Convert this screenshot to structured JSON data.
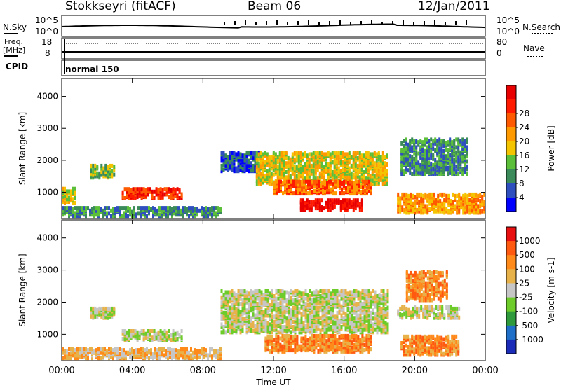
{
  "header": {
    "station": "Stokkseyri (fitACF)",
    "beam": "Beam 06",
    "date": "12/Jan/2011"
  },
  "strips": {
    "nsky_label": "N.Sky",
    "nsearch_label": "N.Search",
    "scale_top": "10^5",
    "scale_bottom": "10^0",
    "freq_label_1": "Freq.",
    "freq_label_2": "[MHz]",
    "freq_top": "18",
    "freq_bottom": "8",
    "nave_label": "Nave",
    "nave_top": "80",
    "nave_bottom": "0",
    "cpid_label": "CPID",
    "cpid_value": "normal 150"
  },
  "colors": {
    "power": [
      "#0000ff",
      "#2f4fbf",
      "#3a8a5a",
      "#5cbf3a",
      "#f5c400",
      "#ff9a00",
      "#ff5a00",
      "#ff1a00",
      "#e80000"
    ],
    "velocity": [
      "#1b2db8",
      "#1f6ec8",
      "#2e9a3c",
      "#6dcc2a",
      "#c6c6c6",
      "#e8b24a",
      "#ff8a1a",
      "#ff5a10",
      "#e81010"
    ]
  },
  "chart_data": [
    {
      "type": "heatmap",
      "title": "Power",
      "ylabel": "Slant Range [km]",
      "xlabel": "Time UT",
      "x_ticks": [
        "00:00",
        "04:00",
        "08:00",
        "12:00",
        "16:00",
        "20:00",
        "00:00"
      ],
      "y_ticks": [
        "1000",
        "2000",
        "3000",
        "4000"
      ],
      "ylim": [
        180,
        4560
      ],
      "colorbar_label": "Power [dB]",
      "colorbar_ticks": [
        "4",
        "8",
        "12",
        "16",
        "20",
        "24",
        "28"
      ],
      "regions": [
        {
          "t0": 1.6,
          "t1": 3.0,
          "r0": 1400,
          "r1": 1800,
          "level": 3
        },
        {
          "t0": 0.0,
          "t1": 0.8,
          "r0": 600,
          "r1": 1050,
          "level": 4
        },
        {
          "t0": 3.4,
          "t1": 6.8,
          "r0": 750,
          "r1": 1050,
          "level": 7
        },
        {
          "t0": 0.0,
          "t1": 9.0,
          "r0": 200,
          "r1": 450,
          "level": 2
        },
        {
          "t0": 9.0,
          "t1": 11.2,
          "r0": 1600,
          "r1": 2200,
          "level": 1
        },
        {
          "t0": 11.0,
          "t1": 18.5,
          "r0": 1200,
          "r1": 2200,
          "level": 4
        },
        {
          "t0": 12.0,
          "t1": 17.5,
          "r0": 900,
          "r1": 1300,
          "level": 6
        },
        {
          "t0": 13.5,
          "t1": 17.0,
          "r0": 400,
          "r1": 700,
          "level": 8
        },
        {
          "t0": 19.0,
          "t1": 24.0,
          "r0": 300,
          "r1": 900,
          "level": 5
        },
        {
          "t0": 19.2,
          "t1": 23.0,
          "r0": 1500,
          "r1": 2600,
          "level": 2
        }
      ]
    },
    {
      "type": "heatmap",
      "title": "Velocity",
      "ylabel": "Slant Range [km]",
      "xlabel": "Time UT",
      "x_ticks": [
        "00:00",
        "04:00",
        "08:00",
        "12:00",
        "16:00",
        "20:00",
        "00:00"
      ],
      "y_ticks": [
        "1000",
        "2000",
        "3000",
        "4000"
      ],
      "ylim": [
        180,
        4560
      ],
      "colorbar_label": "Velocity [m s-1]",
      "colorbar_ticks": [
        "1000",
        "500",
        "100",
        "25",
        "-25",
        "-100",
        "-500",
        "-1000"
      ],
      "regions": [
        {
          "t0": 1.6,
          "t1": 3.0,
          "r0": 1450,
          "r1": 1750,
          "level": 4
        },
        {
          "t0": 3.4,
          "t1": 6.8,
          "r0": 750,
          "r1": 1050,
          "level": 4
        },
        {
          "t0": 0.0,
          "t1": 9.0,
          "r0": 200,
          "r1": 500,
          "level": 5
        },
        {
          "t0": 9.0,
          "t1": 18.5,
          "r0": 1000,
          "r1": 2300,
          "level": 4
        },
        {
          "t0": 11.5,
          "t1": 17.5,
          "r0": 400,
          "r1": 900,
          "level": 6
        },
        {
          "t0": 19.2,
          "t1": 22.5,
          "r0": 300,
          "r1": 900,
          "level": 6
        },
        {
          "t0": 19.0,
          "t1": 22.5,
          "r0": 1450,
          "r1": 1800,
          "level": 4
        },
        {
          "t0": 19.5,
          "t1": 21.8,
          "r0": 2000,
          "r1": 2900,
          "level": 6
        }
      ]
    }
  ]
}
